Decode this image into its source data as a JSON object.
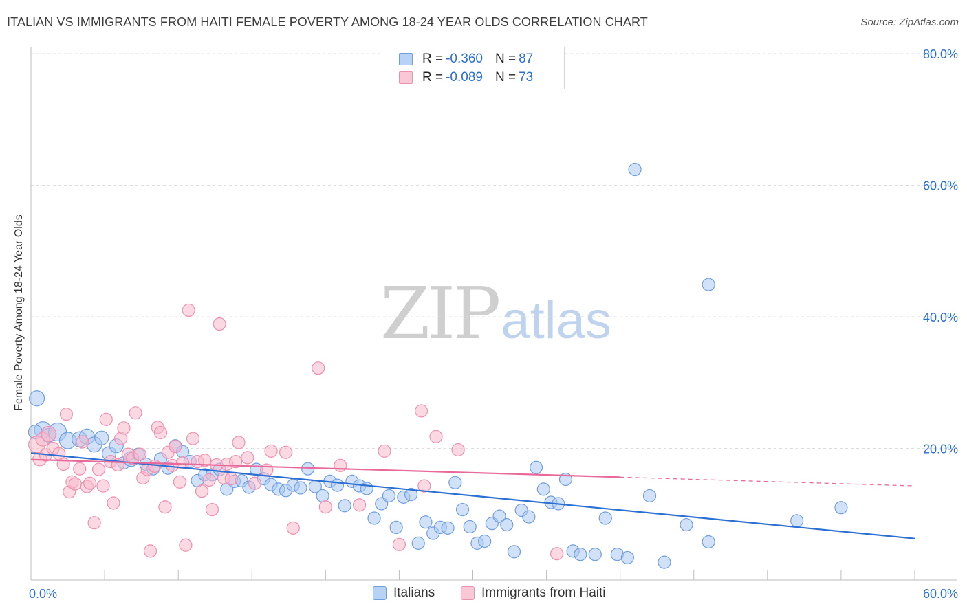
{
  "title": "ITALIAN VS IMMIGRANTS FROM HAITI FEMALE POVERTY AMONG 18-24 YEAR OLDS CORRELATION CHART",
  "source": "Source: ZipAtlas.com",
  "watermark": {
    "zip": "ZIP",
    "atlas": "atlas"
  },
  "legend_top": [
    {
      "r_label": "R =",
      "r_value": "-0.360",
      "n_label": "N =",
      "n_value": "87"
    },
    {
      "r_label": "R =",
      "r_value": "-0.089",
      "n_label": "N =",
      "n_value": "73"
    }
  ],
  "colors": {
    "italians_fill": "#a9c8f2",
    "italians_stroke": "#6f9ee0",
    "italians_line": "#2b6fd3",
    "haiti_fill": "#f7b9cc",
    "haiti_stroke": "#ee8fae",
    "haiti_line": "#e8699a",
    "tick_label": "#2f6dcc",
    "grid": "#dddddd"
  },
  "chart_data": {
    "type": "scatter",
    "title": "ITALIAN VS IMMIGRANTS FROM HAITI FEMALE POVERTY AMONG 18-24 YEAR OLDS CORRELATION CHART",
    "xlabel": "",
    "ylabel": "Female Poverty Among 18-24 Year Olds",
    "xlim": [
      0,
      60
    ],
    "ylim": [
      0,
      80
    ],
    "x_tick_labels": [
      "0.0%",
      "60.0%"
    ],
    "y_ticks": [
      20,
      40,
      60,
      80
    ],
    "y_tick_labels": [
      "20.0%",
      "40.0%",
      "60.0%",
      "80.0%"
    ],
    "grid": true,
    "legend": "bottom-center",
    "series": [
      {
        "name": "Italians",
        "trend": {
          "x": [
            0,
            60
          ],
          "y": [
            19.3,
            6.3
          ],
          "dashed_from": null
        },
        "points": [
          [
            0.4,
            27.6,
            11
          ],
          [
            0.8,
            22.8,
            12
          ],
          [
            1.2,
            22.0,
            10
          ],
          [
            1.8,
            22.5,
            13
          ],
          [
            2.5,
            21.2,
            12
          ],
          [
            3.3,
            21.4,
            11
          ],
          [
            3.8,
            21.8,
            11
          ],
          [
            4.3,
            20.6,
            11
          ],
          [
            4.8,
            21.6,
            10
          ],
          [
            5.3,
            19.2,
            10
          ],
          [
            5.8,
            20.4,
            10
          ],
          [
            6.3,
            17.8,
            9
          ],
          [
            6.8,
            18.4,
            11
          ],
          [
            7.3,
            19.1,
            9
          ],
          [
            7.8,
            17.6,
            9
          ],
          [
            8.3,
            16.9,
            9
          ],
          [
            8.8,
            18.4,
            9
          ],
          [
            9.3,
            17.0,
            9
          ],
          [
            9.8,
            20.4,
            9
          ],
          [
            10.3,
            19.5,
            9
          ],
          [
            10.8,
            18.0,
            9
          ],
          [
            11.3,
            15.1,
            9
          ],
          [
            11.8,
            16.0,
            9
          ],
          [
            12.3,
            16.0,
            9
          ],
          [
            12.8,
            16.8,
            9
          ],
          [
            13.3,
            13.8,
            9
          ],
          [
            13.8,
            15.0,
            9
          ],
          [
            14.3,
            15.1,
            9
          ],
          [
            14.8,
            14.1,
            9
          ],
          [
            15.3,
            16.8,
            9
          ],
          [
            15.8,
            15.4,
            9
          ],
          [
            16.3,
            14.5,
            9
          ],
          [
            16.8,
            13.8,
            9
          ],
          [
            17.3,
            13.6,
            9
          ],
          [
            17.8,
            14.4,
            9
          ],
          [
            18.3,
            14.0,
            9
          ],
          [
            18.8,
            16.9,
            9
          ],
          [
            19.3,
            14.2,
            9
          ],
          [
            19.8,
            12.8,
            9
          ],
          [
            20.3,
            15.0,
            9
          ],
          [
            20.8,
            14.4,
            9
          ],
          [
            21.3,
            11.3,
            9
          ],
          [
            21.8,
            15.0,
            9
          ],
          [
            22.3,
            14.3,
            9
          ],
          [
            22.8,
            13.9,
            9
          ],
          [
            23.3,
            9.4,
            9
          ],
          [
            23.8,
            11.6,
            9
          ],
          [
            24.3,
            12.8,
            9
          ],
          [
            24.8,
            8.0,
            9
          ],
          [
            25.3,
            12.6,
            9
          ],
          [
            25.8,
            13.0,
            9
          ],
          [
            26.3,
            5.6,
            9
          ],
          [
            26.8,
            8.8,
            9
          ],
          [
            27.3,
            7.1,
            9
          ],
          [
            27.8,
            8.0,
            9
          ],
          [
            28.3,
            7.9,
            9
          ],
          [
            28.8,
            14.8,
            9
          ],
          [
            29.3,
            10.7,
            9
          ],
          [
            29.8,
            8.1,
            9
          ],
          [
            30.3,
            5.6,
            9
          ],
          [
            30.8,
            5.9,
            9
          ],
          [
            31.3,
            8.6,
            9
          ],
          [
            31.8,
            9.7,
            9
          ],
          [
            32.3,
            8.4,
            9
          ],
          [
            32.8,
            4.3,
            9
          ],
          [
            33.3,
            10.6,
            9
          ],
          [
            33.8,
            9.6,
            9
          ],
          [
            34.3,
            17.1,
            9
          ],
          [
            34.8,
            13.8,
            9
          ],
          [
            35.3,
            11.8,
            9
          ],
          [
            35.8,
            11.6,
            9
          ],
          [
            36.3,
            15.3,
            9
          ],
          [
            36.8,
            4.4,
            9
          ],
          [
            37.3,
            3.9,
            9
          ],
          [
            38.3,
            3.9,
            9
          ],
          [
            39.0,
            9.4,
            9
          ],
          [
            39.8,
            3.9,
            9
          ],
          [
            40.5,
            3.4,
            9
          ],
          [
            41.0,
            62.4,
            9
          ],
          [
            42.0,
            12.8,
            9
          ],
          [
            43.0,
            2.7,
            9
          ],
          [
            44.5,
            8.4,
            9
          ],
          [
            46.0,
            44.9,
            9
          ],
          [
            46.0,
            5.8,
            9
          ],
          [
            52.0,
            9.0,
            9
          ],
          [
            55.0,
            11.0,
            9
          ],
          [
            0.3,
            22.5,
            10
          ]
        ]
      },
      {
        "name": "Immigrants from Haiti",
        "trend": {
          "x": [
            0,
            60
          ],
          "y": [
            18.3,
            14.3
          ],
          "dashed_from": 40
        },
        "points": [
          [
            0.4,
            20.6,
            12
          ],
          [
            0.6,
            18.4,
            10
          ],
          [
            0.8,
            21.4,
            10
          ],
          [
            1.0,
            19.0,
            9
          ],
          [
            1.2,
            22.2,
            11
          ],
          [
            1.5,
            20.0,
            9
          ],
          [
            1.9,
            19.2,
            9
          ],
          [
            2.2,
            17.6,
            9
          ],
          [
            2.4,
            25.2,
            9
          ],
          [
            2.6,
            13.4,
            9
          ],
          [
            2.8,
            14.9,
            9
          ],
          [
            3.0,
            14.6,
            9
          ],
          [
            3.3,
            16.9,
            9
          ],
          [
            3.5,
            21.0,
            9
          ],
          [
            3.8,
            14.2,
            9
          ],
          [
            4.0,
            14.7,
            9
          ],
          [
            4.3,
            8.7,
            9
          ],
          [
            4.6,
            16.8,
            9
          ],
          [
            4.9,
            14.3,
            9
          ],
          [
            5.1,
            24.4,
            9
          ],
          [
            5.4,
            18.0,
            9
          ],
          [
            5.6,
            11.7,
            9
          ],
          [
            5.9,
            17.5,
            9
          ],
          [
            6.1,
            21.5,
            9
          ],
          [
            6.3,
            23.1,
            9
          ],
          [
            6.6,
            19.1,
            9
          ],
          [
            6.9,
            18.5,
            9
          ],
          [
            7.1,
            25.4,
            9
          ],
          [
            7.4,
            19.1,
            9
          ],
          [
            7.6,
            15.5,
            9
          ],
          [
            7.9,
            16.8,
            9
          ],
          [
            8.1,
            4.4,
            9
          ],
          [
            8.4,
            17.3,
            9
          ],
          [
            8.6,
            23.2,
            9
          ],
          [
            8.8,
            22.4,
            9
          ],
          [
            9.1,
            11.1,
            9
          ],
          [
            9.3,
            19.4,
            9
          ],
          [
            9.6,
            17.4,
            9
          ],
          [
            9.8,
            20.3,
            9
          ],
          [
            10.1,
            14.9,
            9
          ],
          [
            10.3,
            17.8,
            9
          ],
          [
            10.5,
            5.3,
            9
          ],
          [
            10.7,
            41.0,
            9
          ],
          [
            11.0,
            21.5,
            9
          ],
          [
            11.3,
            18.0,
            9
          ],
          [
            11.6,
            13.5,
            9
          ],
          [
            11.8,
            18.2,
            9
          ],
          [
            12.1,
            15.2,
            9
          ],
          [
            12.3,
            10.7,
            9
          ],
          [
            12.6,
            17.5,
            9
          ],
          [
            12.8,
            38.9,
            9
          ],
          [
            13.1,
            15.5,
            9
          ],
          [
            13.3,
            17.6,
            9
          ],
          [
            13.6,
            15.4,
            9
          ],
          [
            13.9,
            18.0,
            9
          ],
          [
            14.1,
            20.9,
            9
          ],
          [
            14.7,
            18.6,
            9
          ],
          [
            15.2,
            14.7,
            9
          ],
          [
            16.0,
            16.7,
            9
          ],
          [
            16.3,
            19.6,
            9
          ],
          [
            17.3,
            19.4,
            9
          ],
          [
            17.8,
            7.9,
            9
          ],
          [
            19.5,
            32.2,
            9
          ],
          [
            20.0,
            11.1,
            9
          ],
          [
            21.0,
            17.4,
            9
          ],
          [
            22.3,
            11.4,
            9
          ],
          [
            24.0,
            19.6,
            9
          ],
          [
            25.0,
            5.4,
            9
          ],
          [
            26.5,
            25.7,
            9
          ],
          [
            26.7,
            14.3,
            9
          ],
          [
            27.5,
            21.8,
            9
          ],
          [
            29.0,
            19.8,
            9
          ],
          [
            35.7,
            4.0,
            9
          ]
        ]
      }
    ]
  }
}
